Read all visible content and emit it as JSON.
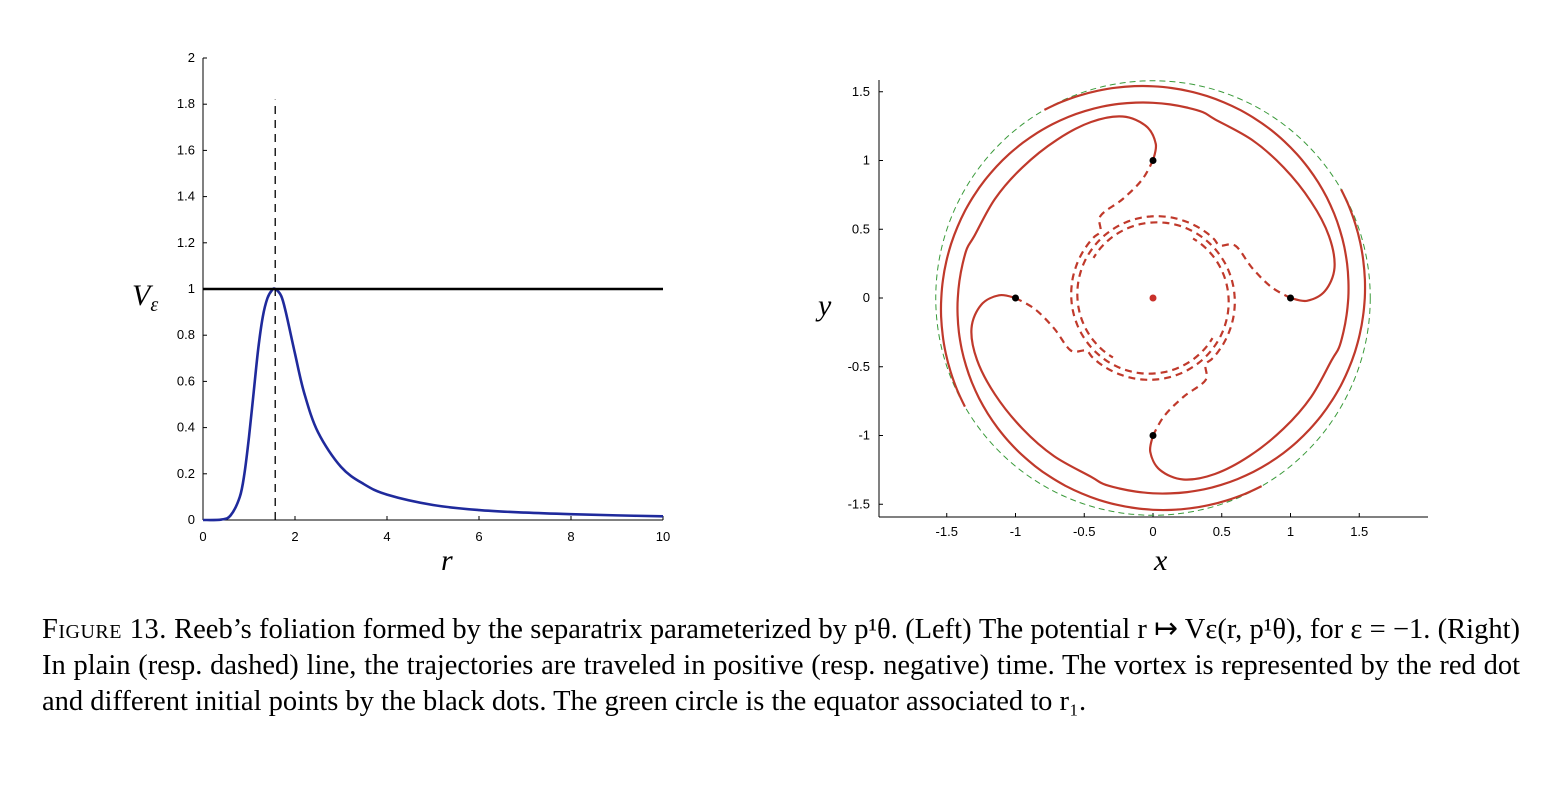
{
  "caption": {
    "label": "Figure 13.",
    "text": "Reeb’s foliation formed by the separatrix parameterized by p¹θ. (Left) The potential r ↦ Vε(r, p¹θ), for ε = −1. (Right) In plain (resp. dashed) line, the trajectories are traveled in positive (resp. negative) time. The vortex is represented by the red dot and different initial points by the black dots. The green circle is the equator associated to r₁."
  },
  "chart_data": [
    {
      "type": "line",
      "xlabel": "r",
      "ylabel": "Vε",
      "xlim": [
        0,
        10
      ],
      "ylim": [
        0,
        2
      ],
      "xticks": [
        "0",
        "2",
        "4",
        "6",
        "8",
        "10"
      ],
      "yticks": [
        "0",
        "0.2",
        "0.4",
        "0.6",
        "0.8",
        "1",
        "1.2",
        "1.4",
        "1.6",
        "1.8",
        "2"
      ],
      "series": [
        {
          "style": "solid",
          "color": "#1f2a9c",
          "x": [
            0,
            0.4,
            0.6,
            0.8,
            0.9,
            1.0,
            1.1,
            1.2,
            1.3,
            1.4,
            1.5,
            1.57,
            1.7,
            1.8,
            2.0,
            2.2,
            2.5,
            3,
            3.5,
            4,
            5,
            6,
            7,
            8,
            9,
            10
          ],
          "y": [
            0,
            0.002,
            0.02,
            0.1,
            0.2,
            0.36,
            0.55,
            0.74,
            0.88,
            0.96,
            0.995,
            1.0,
            0.97,
            0.9,
            0.72,
            0.55,
            0.38,
            0.23,
            0.155,
            0.11,
            0.065,
            0.043,
            0.032,
            0.025,
            0.02,
            0.016
          ]
        },
        {
          "style": "solid",
          "color": "#000000",
          "x": [
            0,
            10
          ],
          "y": [
            1,
            1
          ]
        },
        {
          "style": "dashed",
          "color": "#000000",
          "x": [
            1.57,
            1.57
          ],
          "y": [
            0,
            1.82
          ]
        }
      ]
    },
    {
      "type": "line",
      "xlabel": "x",
      "ylabel": "y",
      "xlim": [
        -2,
        2
      ],
      "ylim": [
        -1.6,
        1.6
      ],
      "xticks": [
        "-1.5",
        "-1",
        "-0.5",
        "0",
        "0.5",
        "1",
        "1.5"
      ],
      "yticks": [
        "-1.5",
        "-1",
        "-0.5",
        "0",
        "0.5",
        "1",
        "1.5"
      ],
      "equator": {
        "color": "#3a9a3a",
        "style": "dashed",
        "radius": 1.58
      },
      "vortex": {
        "color": "#c8302a",
        "x": 0,
        "y": 0
      },
      "initial_points": {
        "color": "#000000",
        "points": [
          [
            0,
            1
          ],
          [
            1,
            0
          ],
          [
            0,
            -1
          ],
          [
            -1,
            0
          ]
        ]
      },
      "trajectory_color": "#c0392b"
    }
  ]
}
